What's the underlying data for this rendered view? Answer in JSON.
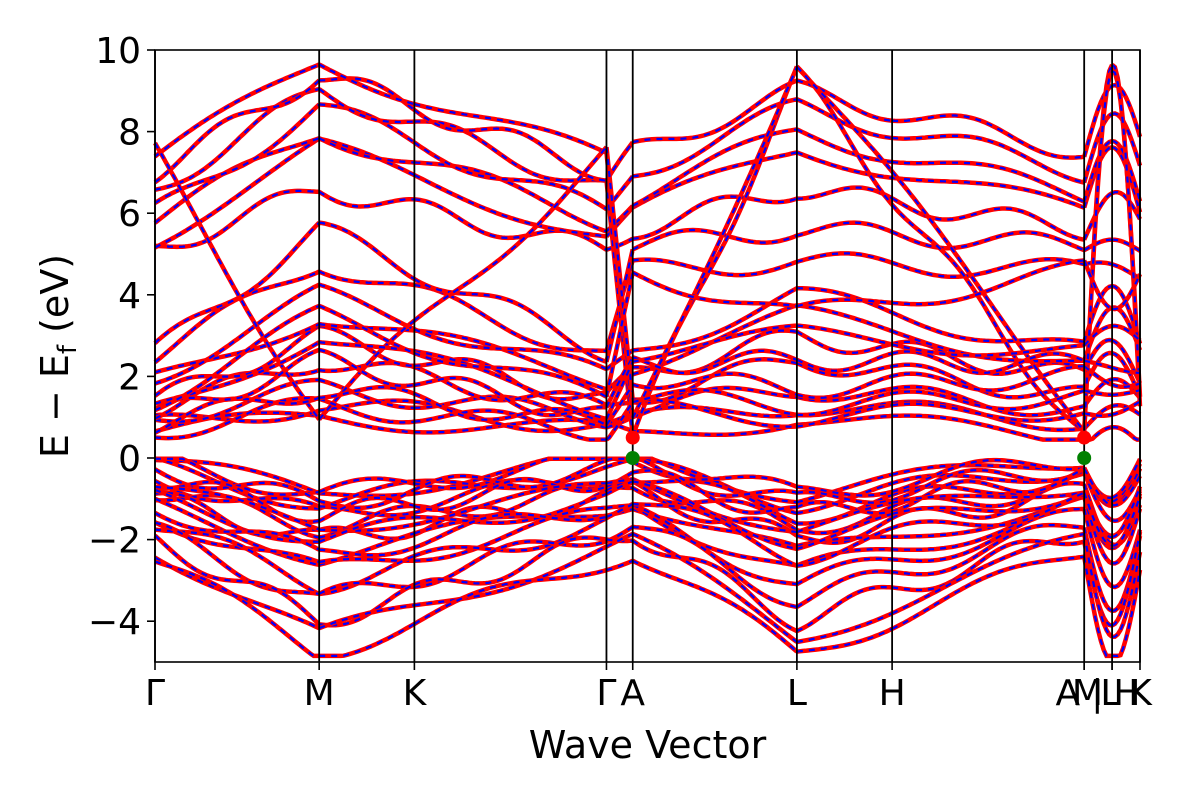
{
  "chart_data": {
    "type": "line",
    "title": "",
    "xlabel": "Wave Vector",
    "ylabel": "E − E",
    "ylabel_sub": "f",
    "ylabel_unit": " (eV)",
    "ylim": [
      -5,
      10
    ],
    "yticks": [
      -4,
      -2,
      0,
      2,
      4,
      6,
      8,
      10
    ],
    "ytick_labels": [
      "−4",
      "−2",
      "0",
      "2",
      "4",
      "6",
      "8",
      "10"
    ],
    "xlim": [
      0,
      6.0
    ],
    "kpoints": [
      {
        "label": "Γ",
        "x": 0.0
      },
      {
        "label": "M",
        "x": 1.0
      },
      {
        "label": "K",
        "x": 1.58
      },
      {
        "label": "Γ",
        "x": 2.75
      },
      {
        "label": "A",
        "x": 2.91
      },
      {
        "label": "L",
        "x": 3.91
      },
      {
        "label": "H",
        "x": 4.49
      },
      {
        "label": "A",
        "x": 5.66
      },
      {
        "label": "M",
        "x": 5.66
      },
      {
        "label": "L",
        "x": 5.83
      },
      {
        "label": "H",
        "x": 5.83
      },
      {
        "label": "K",
        "x": 6.0
      }
    ],
    "kpoint_tick_text": [
      "Γ",
      "M",
      "K",
      "Γ",
      "A",
      "L",
      "H",
      "A",
      "M",
      "|",
      "L",
      "H",
      "K"
    ],
    "series": [
      {
        "color": "#ff0000",
        "style": "solid"
      },
      {
        "color": "#0000ff",
        "style": "dashed"
      }
    ],
    "markers": [
      {
        "x": 2.91,
        "y": 0.5,
        "color": "#ff0000"
      },
      {
        "x": 2.91,
        "y": 0.0,
        "color": "#008000"
      },
      {
        "x": 5.66,
        "y": 0.5,
        "color": "#ff0000"
      },
      {
        "x": 5.66,
        "y": 0.0,
        "color": "#008000"
      }
    ],
    "valence_bands_at_gamma": [
      -0.05,
      -0.25,
      -0.5,
      -0.8,
      -1.0,
      -1.2,
      -1.4,
      -1.6,
      -1.8,
      -2.0,
      -2.2,
      -2.5
    ],
    "valence_bands_at_A": [
      0.0,
      -0.2,
      -0.4,
      -0.6,
      -0.8,
      -1.0,
      -1.2,
      -1.4,
      -1.6,
      -1.8,
      -2.0,
      -2.3
    ],
    "valence_bands_at_M": [
      -0.9,
      -1.1,
      -1.4,
      -1.7,
      -2.0,
      -2.4,
      -2.8,
      -3.1,
      -3.5,
      -4.0,
      -4.4,
      -4.8
    ],
    "conduction_bands_at_gamma": [
      0.65,
      0.8,
      1.0,
      1.2,
      1.4,
      1.9,
      2.0,
      2.5,
      2.6,
      5.1,
      5.4,
      5.8,
      6.0,
      6.6,
      7.0,
      7.3,
      7.5
    ],
    "conduction_bands_at_A": [
      0.5,
      0.9,
      1.2,
      1.5,
      2.0,
      2.3,
      2.6,
      4.6,
      5.2,
      5.6,
      6.0,
      6.4,
      7.0,
      7.5
    ],
    "conduction_bands_at_M": [
      1.0,
      1.3,
      1.7,
      2.4,
      3.0,
      3.5,
      4.0,
      4.8,
      5.6,
      6.6,
      7.6,
      8.0,
      8.6,
      9.0,
      9.4,
      9.7
    ]
  }
}
